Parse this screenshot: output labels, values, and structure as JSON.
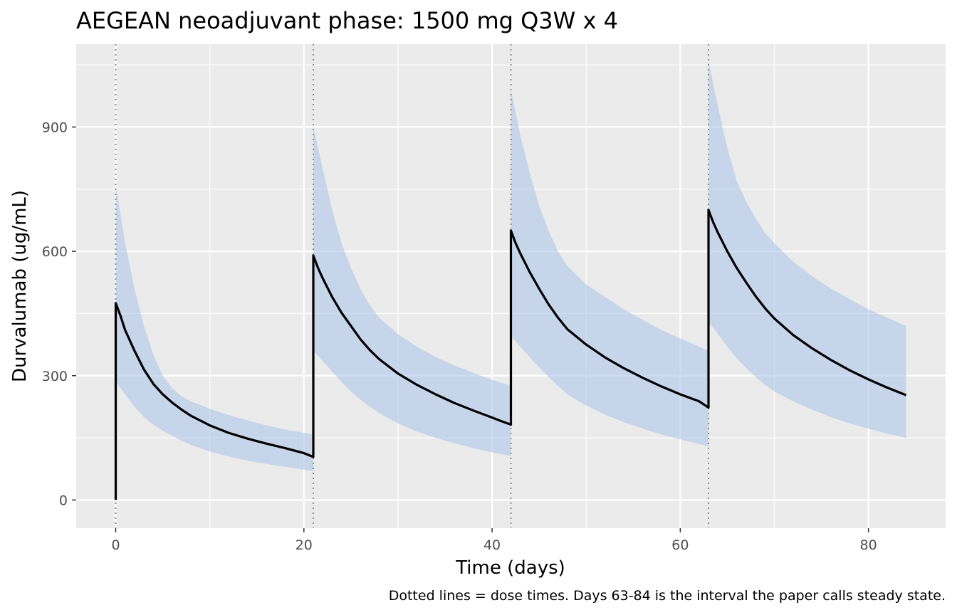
{
  "chart_data": {
    "type": "line",
    "title": "AEGEAN neoadjuvant phase: 1500 mg Q3W x 4",
    "xlabel": "Time (days)",
    "ylabel": "Durvalumab (ug/mL)",
    "caption": "Dotted lines = dose times. Days 63-84 is the interval the paper calls steady state.",
    "xlim": [
      -4.2,
      88.2
    ],
    "ylim": [
      -68,
      1100
    ],
    "x_ticks": [
      0,
      20,
      40,
      60,
      80
    ],
    "x_tick_labels": [
      "0",
      "20",
      "40",
      "60",
      "80"
    ],
    "x_minor": [
      10,
      30,
      50,
      70
    ],
    "y_ticks": [
      0,
      300,
      600,
      900
    ],
    "y_tick_labels": [
      "0",
      "300",
      "600",
      "900"
    ],
    "y_minor": [
      150,
      450,
      750,
      1050
    ],
    "grid": true,
    "dose_times": [
      0,
      21,
      42,
      63
    ],
    "colors": {
      "panel": "#ebebeb",
      "grid": "#ffffff",
      "median_line": "#000000",
      "ribbon": "#aec7e8",
      "dose_line": "#8c8c8c"
    },
    "series": [
      {
        "role": "median",
        "points": [
          [
            0,
            0
          ],
          [
            0,
            475
          ],
          [
            0.5,
            445
          ],
          [
            1,
            410
          ],
          [
            2,
            360
          ],
          [
            3,
            315
          ],
          [
            4,
            280
          ],
          [
            5,
            255
          ],
          [
            6,
            235
          ],
          [
            7,
            218
          ],
          [
            8,
            203
          ],
          [
            10,
            180
          ],
          [
            12,
            162
          ],
          [
            14,
            148
          ],
          [
            16,
            136
          ],
          [
            18,
            125
          ],
          [
            20,
            113
          ],
          [
            21,
            104
          ],
          [
            21,
            590
          ],
          [
            21.5,
            560
          ],
          [
            22,
            535
          ],
          [
            23,
            490
          ],
          [
            24,
            452
          ],
          [
            25,
            420
          ],
          [
            26,
            388
          ],
          [
            27,
            362
          ],
          [
            28,
            340
          ],
          [
            30,
            305
          ],
          [
            32,
            278
          ],
          [
            34,
            255
          ],
          [
            36,
            234
          ],
          [
            38,
            216
          ],
          [
            40,
            199
          ],
          [
            41,
            190
          ],
          [
            42,
            182
          ],
          [
            42,
            650
          ],
          [
            42.5,
            620
          ],
          [
            43,
            595
          ],
          [
            44,
            550
          ],
          [
            45,
            510
          ],
          [
            46,
            472
          ],
          [
            47,
            440
          ],
          [
            48,
            412
          ],
          [
            50,
            375
          ],
          [
            52,
            344
          ],
          [
            54,
            318
          ],
          [
            56,
            295
          ],
          [
            58,
            274
          ],
          [
            60,
            255
          ],
          [
            62,
            238
          ],
          [
            63,
            223
          ],
          [
            63,
            700
          ],
          [
            63.5,
            670
          ],
          [
            64,
            645
          ],
          [
            65,
            600
          ],
          [
            66,
            560
          ],
          [
            67,
            525
          ],
          [
            68,
            492
          ],
          [
            69,
            463
          ],
          [
            70,
            438
          ],
          [
            72,
            398
          ],
          [
            74,
            366
          ],
          [
            76,
            338
          ],
          [
            78,
            313
          ],
          [
            80,
            291
          ],
          [
            82,
            271
          ],
          [
            84,
            253
          ]
        ]
      },
      {
        "role": "interval",
        "upper": [
          [
            0,
            760
          ],
          [
            1,
            620
          ],
          [
            2,
            510
          ],
          [
            3,
            420
          ],
          [
            4,
            350
          ],
          [
            5,
            300
          ],
          [
            6,
            270
          ],
          [
            7,
            250
          ],
          [
            8,
            238
          ],
          [
            10,
            220
          ],
          [
            12,
            205
          ],
          [
            14,
            192
          ],
          [
            16,
            180
          ],
          [
            18,
            170
          ],
          [
            20,
            162
          ],
          [
            21,
            158
          ],
          [
            21,
            900
          ],
          [
            22,
            800
          ],
          [
            23,
            700
          ],
          [
            24,
            620
          ],
          [
            25,
            560
          ],
          [
            26,
            510
          ],
          [
            27,
            470
          ],
          [
            28,
            440
          ],
          [
            30,
            400
          ],
          [
            32,
            370
          ],
          [
            34,
            345
          ],
          [
            36,
            325
          ],
          [
            38,
            307
          ],
          [
            40,
            290
          ],
          [
            42,
            275
          ],
          [
            42,
            990
          ],
          [
            43,
            880
          ],
          [
            44,
            790
          ],
          [
            45,
            710
          ],
          [
            46,
            650
          ],
          [
            47,
            600
          ],
          [
            48,
            565
          ],
          [
            50,
            520
          ],
          [
            52,
            490
          ],
          [
            54,
            460
          ],
          [
            56,
            435
          ],
          [
            58,
            410
          ],
          [
            60,
            390
          ],
          [
            62,
            370
          ],
          [
            63,
            360
          ],
          [
            63,
            1060
          ],
          [
            64,
            950
          ],
          [
            65,
            850
          ],
          [
            66,
            770
          ],
          [
            67,
            720
          ],
          [
            68,
            680
          ],
          [
            69,
            645
          ],
          [
            70,
            620
          ],
          [
            72,
            575
          ],
          [
            74,
            540
          ],
          [
            76,
            510
          ],
          [
            78,
            485
          ],
          [
            80,
            460
          ],
          [
            82,
            440
          ],
          [
            84,
            420
          ]
        ],
        "lower": [
          [
            0,
            285
          ],
          [
            1,
            255
          ],
          [
            2,
            225
          ],
          [
            3,
            200
          ],
          [
            4,
            182
          ],
          [
            5,
            167
          ],
          [
            6,
            155
          ],
          [
            7,
            143
          ],
          [
            8,
            133
          ],
          [
            10,
            117
          ],
          [
            12,
            105
          ],
          [
            14,
            95
          ],
          [
            16,
            87
          ],
          [
            18,
            80
          ],
          [
            20,
            73
          ],
          [
            21,
            70
          ],
          [
            21,
            360
          ],
          [
            22,
            335
          ],
          [
            23,
            310
          ],
          [
            24,
            285
          ],
          [
            25,
            262
          ],
          [
            26,
            242
          ],
          [
            27,
            225
          ],
          [
            28,
            210
          ],
          [
            30,
            185
          ],
          [
            32,
            165
          ],
          [
            34,
            150
          ],
          [
            36,
            137
          ],
          [
            38,
            125
          ],
          [
            40,
            115
          ],
          [
            42,
            106
          ],
          [
            42,
            395
          ],
          [
            43,
            370
          ],
          [
            44,
            345
          ],
          [
            45,
            320
          ],
          [
            46,
            297
          ],
          [
            47,
            275
          ],
          [
            48,
            255
          ],
          [
            50,
            228
          ],
          [
            52,
            206
          ],
          [
            54,
            188
          ],
          [
            56,
            172
          ],
          [
            58,
            158
          ],
          [
            60,
            146
          ],
          [
            62,
            135
          ],
          [
            63,
            130
          ],
          [
            63,
            430
          ],
          [
            64,
            400
          ],
          [
            65,
            370
          ],
          [
            66,
            342
          ],
          [
            67,
            318
          ],
          [
            68,
            297
          ],
          [
            69,
            278
          ],
          [
            70,
            262
          ],
          [
            72,
            238
          ],
          [
            74,
            218
          ],
          [
            76,
            200
          ],
          [
            78,
            185
          ],
          [
            80,
            172
          ],
          [
            82,
            160
          ],
          [
            84,
            150
          ]
        ]
      }
    ]
  }
}
